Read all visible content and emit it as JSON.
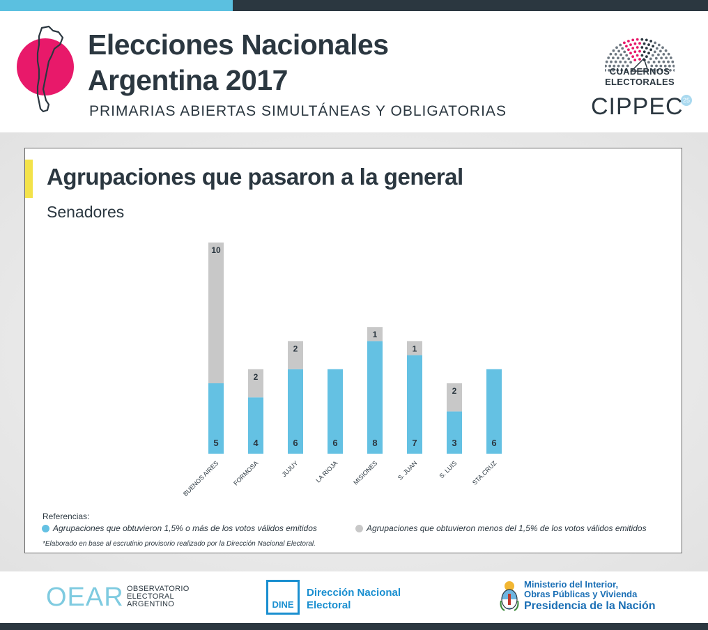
{
  "header": {
    "title_line1": "Elecciones Nacionales",
    "title_line2": "Argentina 2017",
    "subtitle": "PRIMARIAS ABIERTAS SIMULTÁNEAS Y OBLIGATORIAS",
    "brand_line1": "CUADERNOS",
    "brand_line2": "ELECTORALES",
    "brand_name": "CIPPEC",
    "brand_badge": "25",
    "accent_color": "#e8196a"
  },
  "chart_data": {
    "type": "bar",
    "stacked": true,
    "title": "Agrupaciones que pasaron a la general",
    "subtitle": "Senadores",
    "categories": [
      "BUENOS AIRES",
      "FORMOSA",
      "JUJUY",
      "LA RIOJA",
      "MISIONES",
      "S. JUAN",
      "S. LUIS",
      "STA.CRUZ"
    ],
    "series": [
      {
        "name": "Agrupaciones que obtuvieron 1,5% o más de los votos válidos emitidos",
        "color": "#64c1e3",
        "values": [
          5,
          4,
          6,
          6,
          8,
          7,
          3,
          6
        ]
      },
      {
        "name": "Agrupaciones que obtuvieron menos del 1,5% de los votos válidos emitidos",
        "color": "#c8c8c8",
        "values": [
          10,
          2,
          2,
          null,
          1,
          1,
          2,
          null
        ]
      }
    ],
    "ylim": [
      0,
      15
    ],
    "grid": false,
    "legend_position": "bottom-left"
  },
  "legend": {
    "title": "Referencias:",
    "footnote": "*Elaborado en base al escrutinio provisorio realizado por la Dirección Nacional Electoral."
  },
  "footer": {
    "oear_word": "OEAR",
    "oear_line1": "OBSERVATORIO",
    "oear_line2": "ELECTORAL",
    "oear_line3": "ARGENTINO",
    "dine_label": "DINE",
    "dine_line1": "Dirección Nacional",
    "dine_line2": "Electoral",
    "ministry_line1": "Ministerio del Interior,",
    "ministry_line2": "Obras Públicas y Vivienda",
    "ministry_line3": "Presidencia de la Nación"
  }
}
